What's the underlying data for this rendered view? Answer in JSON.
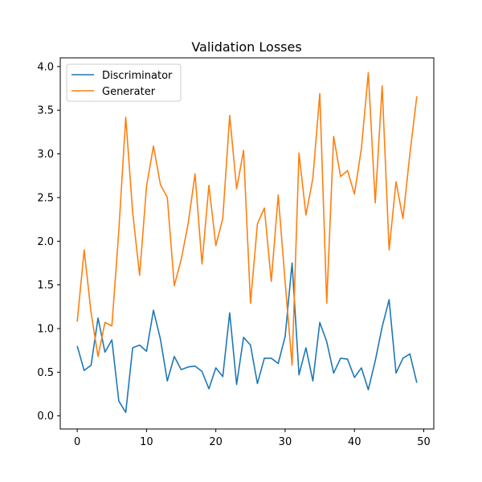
{
  "chart_data": {
    "type": "line",
    "title": "Validation Losses",
    "xlabel": "",
    "ylabel": "",
    "xlim": [
      -2.45,
      51.45
    ],
    "ylim": [
      -0.15,
      4.1
    ],
    "xticks": [
      0,
      10,
      20,
      30,
      40,
      50
    ],
    "yticks": [
      0.0,
      0.5,
      1.0,
      1.5,
      2.0,
      2.5,
      3.0,
      3.5,
      4.0
    ],
    "xtick_labels": [
      "0",
      "10",
      "20",
      "30",
      "40",
      "50"
    ],
    "ytick_labels": [
      "0.0",
      "0.5",
      "1.0",
      "1.5",
      "2.0",
      "2.5",
      "3.0",
      "3.5",
      "4.0"
    ],
    "grid": false,
    "legend_position": "top-left",
    "x": [
      0,
      1,
      2,
      3,
      4,
      5,
      6,
      7,
      8,
      9,
      10,
      11,
      12,
      13,
      14,
      15,
      16,
      17,
      18,
      19,
      20,
      21,
      22,
      23,
      24,
      25,
      26,
      27,
      28,
      29,
      30,
      31,
      32,
      33,
      34,
      35,
      36,
      37,
      38,
      39,
      40,
      41,
      42,
      43,
      44,
      45,
      46,
      47,
      48,
      49
    ],
    "series": [
      {
        "name": "Discriminator",
        "color": "#1f77b4",
        "values": [
          0.8,
          0.52,
          0.58,
          1.12,
          0.73,
          0.87,
          0.17,
          0.04,
          0.78,
          0.81,
          0.74,
          1.21,
          0.88,
          0.4,
          0.68,
          0.53,
          0.56,
          0.57,
          0.51,
          0.31,
          0.55,
          0.45,
          1.18,
          0.36,
          0.9,
          0.81,
          0.37,
          0.66,
          0.66,
          0.6,
          0.91,
          1.75,
          0.47,
          0.78,
          0.4,
          1.07,
          0.85,
          0.49,
          0.66,
          0.65,
          0.44,
          0.55,
          0.3,
          0.63,
          1.02,
          1.33,
          0.49,
          0.66,
          0.71,
          0.38
        ]
      },
      {
        "name": "Generater",
        "color": "#ff7f0e",
        "values": [
          1.08,
          1.9,
          1.18,
          0.68,
          1.07,
          1.03,
          2.12,
          3.42,
          2.33,
          1.61,
          2.63,
          3.09,
          2.65,
          2.5,
          1.49,
          1.79,
          2.2,
          2.77,
          1.74,
          2.64,
          1.95,
          2.26,
          3.44,
          2.6,
          3.04,
          1.29,
          2.2,
          2.38,
          1.54,
          2.53,
          1.53,
          0.58,
          3.01,
          2.3,
          2.72,
          3.69,
          1.29,
          3.2,
          2.74,
          2.81,
          2.54,
          3.06,
          3.93,
          2.44,
          3.78,
          1.9,
          2.68,
          2.26,
          3.0,
          3.66
        ]
      }
    ]
  }
}
